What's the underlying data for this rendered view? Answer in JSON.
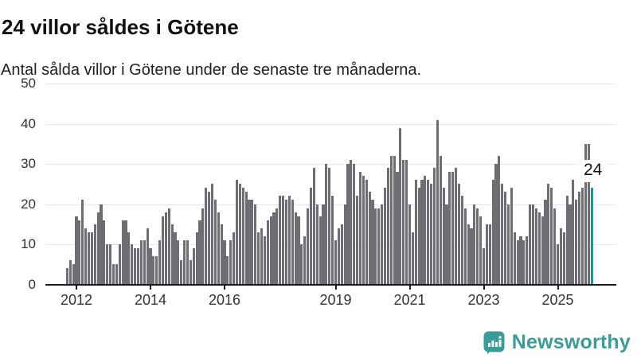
{
  "header": {
    "title": "24 villor såldes i Götene",
    "subtitle": "Antal sålda villor i Götene under de senaste tre månaderna."
  },
  "chart_data": {
    "type": "bar",
    "title": "24 villor såldes i Götene",
    "subtitle": "Antal sålda villor i Götene under de senaste tre månaderna.",
    "ylabel": "",
    "xlabel": "",
    "ylim": [
      0,
      50
    ],
    "grid": "horizontal",
    "y_axis": {
      "ticks": [
        0,
        10,
        20,
        30,
        40,
        50
      ]
    },
    "x_axis": {
      "tick_labels": [
        "2012",
        "2014",
        "2016",
        "2019",
        "2021",
        "2023",
        "2025"
      ],
      "tick_indices": [
        3,
        27,
        51,
        87,
        111,
        135,
        159
      ]
    },
    "values": [
      4,
      6,
      5,
      17,
      16,
      21,
      14,
      13,
      13,
      15,
      18,
      20,
      16,
      10,
      10,
      5,
      5,
      10,
      16,
      16,
      13,
      10,
      9,
      9,
      11,
      11,
      14,
      9,
      7,
      7,
      11,
      17,
      18,
      19,
      15,
      13,
      11,
      6,
      11,
      11,
      6,
      9,
      13,
      16,
      19,
      24,
      23,
      25,
      21,
      18,
      15,
      11,
      7,
      11,
      13,
      26,
      25,
      24,
      23,
      21,
      21,
      20,
      13,
      14,
      12,
      16,
      17,
      18,
      19,
      22,
      22,
      21,
      22,
      21,
      18,
      17,
      10,
      12,
      19,
      24,
      29,
      20,
      17,
      20,
      30,
      29,
      22,
      11,
      14,
      15,
      20,
      30,
      31,
      30,
      22,
      28,
      27,
      26,
      23,
      21,
      19,
      19,
      20,
      24,
      29,
      32,
      32,
      28,
      39,
      31,
      31,
      20,
      13,
      26,
      24,
      26,
      27,
      26,
      25,
      29,
      41,
      32,
      24,
      20,
      28,
      28,
      29,
      25,
      22,
      19,
      15,
      14,
      20,
      19,
      17,
      9,
      15,
      15,
      26,
      30,
      32,
      25,
      23,
      20,
      24,
      13,
      11,
      12,
      11,
      12,
      20,
      20,
      19,
      18,
      17,
      21,
      25,
      24,
      19,
      10,
      14,
      13,
      22,
      20,
      26,
      21,
      23,
      24,
      35,
      35,
      24
    ],
    "highlight_last_bar": true,
    "annotation": {
      "text": "24",
      "index": 170
    },
    "colors": {
      "bar": "#6d6d73",
      "highlight": "#0f9b9b",
      "grid": "#e8e8e8",
      "axis": "#1a1a1a",
      "axis_text": "#333333"
    }
  },
  "footer": {
    "brand": "Newsworthy",
    "brand_color": "#3a9c96",
    "logo_icon": "bar-chart-speech-bubble-icon"
  }
}
